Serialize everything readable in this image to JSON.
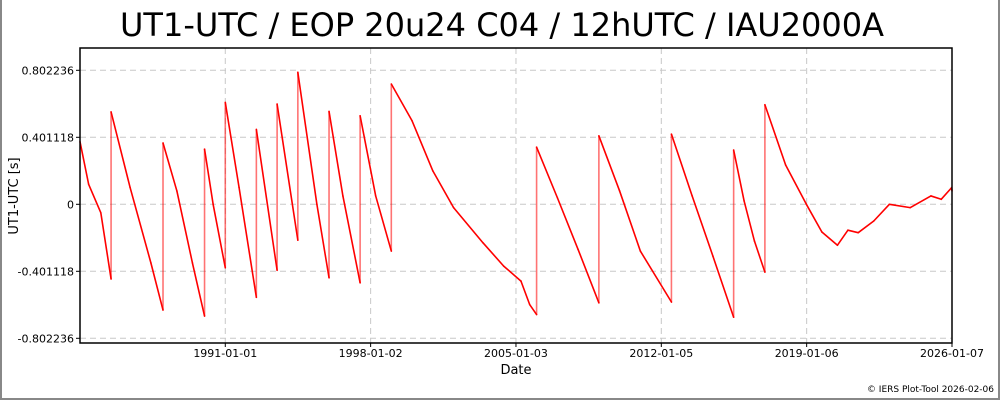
{
  "chart_data": {
    "type": "line",
    "title": "UT1-UTC / EOP 20u24 C04 / 12hUTC / IAU2000A",
    "xlabel": "Date",
    "ylabel": "UT1-UTC [s]",
    "xlim": [
      "1984-01-01",
      "2026-01-07"
    ],
    "ylim": [
      -0.83,
      0.98
    ],
    "x_ticks": [
      "1991-01-01",
      "1998-01-02",
      "2005-01-03",
      "2012-01-05",
      "2019-01-06",
      "2026-01-07"
    ],
    "y_ticks": [
      -0.802236,
      -0.401118,
      0,
      0.401118,
      0.802236
    ],
    "y_tick_labels": [
      "-0.802236",
      "-0.401118",
      "0",
      "0.401118",
      "0.802236"
    ],
    "grid": true,
    "legend": "none",
    "line_color": "#ff0000",
    "series": [
      {
        "x": [
          "1984-01-01",
          "1984-06-01",
          "1985-01-01",
          "1985-07-01",
          "1985-07-01",
          "1986-06-01",
          "1987-06-01",
          "1988-01-01",
          "1988-01-01",
          "1988-09-01",
          "1989-06-01",
          "1990-01-01",
          "1990-01-01",
          "1990-06-01",
          "1991-01-01",
          "1991-01-01",
          "1991-09-01",
          "1992-07-01",
          "1992-07-01",
          "1993-07-01",
          "1993-07-01",
          "1994-07-01",
          "1994-07-01",
          "1995-06-01",
          "1996-01-01",
          "1996-01-01",
          "1996-09-01",
          "1997-07-01",
          "1997-07-01",
          "1998-04-01",
          "1999-01-01",
          "1999-01-01",
          "2000-01-01",
          "2001-01-01",
          "2002-01-01",
          "2003-06-01",
          "2004-06-01",
          "2005-04-01",
          "2005-09-01",
          "2006-01-01",
          "2006-01-01",
          "2007-01-01",
          "2008-01-01",
          "2009-01-01",
          "2009-01-01",
          "2010-01-01",
          "2011-01-01",
          "2012-07-01",
          "2012-07-01",
          "2013-07-01",
          "2014-07-01",
          "2015-07-01",
          "2015-07-01",
          "2016-01-01",
          "2016-07-01",
          "2017-01-01",
          "2017-01-01",
          "2018-01-01",
          "2019-01-01",
          "2019-10-01",
          "2020-07-01",
          "2021-01-01",
          "2021-07-01",
          "2022-04-01",
          "2023-01-01",
          "2024-01-01",
          "2025-01-01",
          "2025-07-01",
          "2026-01-01",
          "2026-01-07"
        ],
        "y": [
          0.375,
          0.12,
          -0.05,
          -0.447,
          0.553,
          0.1,
          -0.35,
          -0.633,
          0.367,
          0.08,
          -0.35,
          -0.669,
          0.33,
          0.0,
          -0.38,
          0.61,
          0.1,
          -0.557,
          0.448,
          -0.395,
          0.6,
          -0.215,
          0.79,
          0.0,
          -0.44,
          0.556,
          0.05,
          -0.47,
          0.53,
          0.05,
          -0.28,
          0.72,
          0.5,
          0.2,
          -0.02,
          -0.23,
          -0.37,
          -0.46,
          -0.6,
          -0.66,
          0.342,
          0.04,
          -0.27,
          -0.59,
          0.41,
          0.08,
          -0.28,
          -0.585,
          0.42,
          0.05,
          -0.31,
          -0.676,
          0.325,
          0.02,
          -0.22,
          -0.406,
          0.596,
          0.235,
          0.0,
          -0.166,
          -0.245,
          -0.155,
          -0.17,
          -0.1,
          0.0,
          -0.02,
          0.05,
          0.03,
          0.1,
          0.08
        ]
      }
    ]
  },
  "footer": "© IERS Plot-Tool 2026-02-06"
}
